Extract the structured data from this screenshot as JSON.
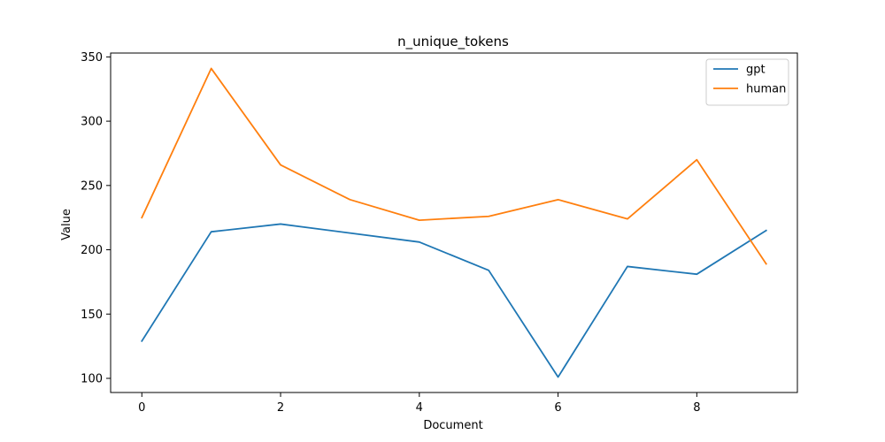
{
  "chart_data": {
    "type": "line",
    "title": "n_unique_tokens",
    "xlabel": "Document",
    "ylabel": "Value",
    "x": [
      0,
      1,
      2,
      3,
      4,
      5,
      6,
      7,
      8,
      9
    ],
    "xlim": [
      -0.45,
      9.45
    ],
    "ylim": [
      89,
      353
    ],
    "xticks": [
      0,
      2,
      4,
      6,
      8
    ],
    "yticks": [
      100,
      150,
      200,
      250,
      300,
      350
    ],
    "grid": false,
    "legend_position": "top-right",
    "series": [
      {
        "name": "gpt",
        "color": "#1f77b4",
        "values": [
          129,
          214,
          220,
          213,
          206,
          184,
          101,
          187,
          181,
          215
        ]
      },
      {
        "name": "human",
        "color": "#ff7f0e",
        "values": [
          225,
          341,
          266,
          239,
          223,
          226,
          239,
          224,
          270,
          189
        ]
      }
    ]
  }
}
